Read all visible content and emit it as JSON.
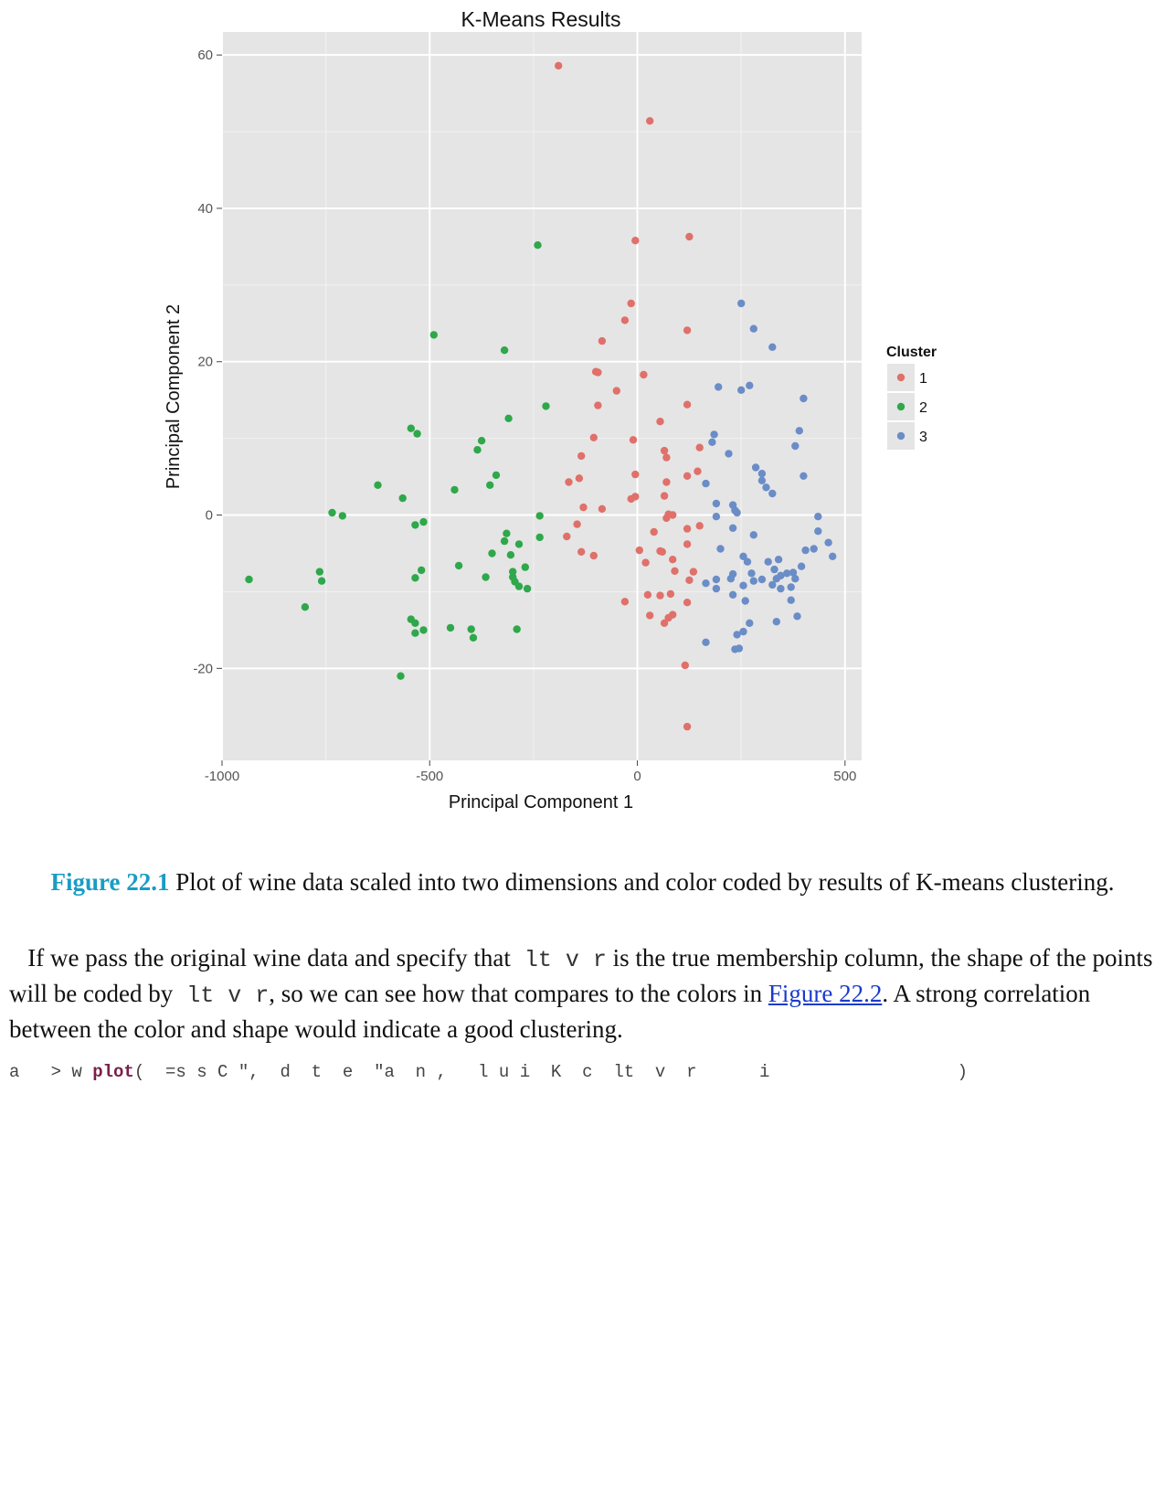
{
  "chart_data": {
    "type": "scatter",
    "title": "K-Means Results",
    "xlabel": "Principal Component 1",
    "ylabel": "Principal Component 2",
    "xlim": [
      -1000,
      540
    ],
    "ylim": [
      -32,
      63
    ],
    "xticks": [
      -1000,
      -500,
      0,
      500
    ],
    "xtick_labels": [
      "-1000",
      "-500",
      "0",
      "500"
    ],
    "yticks": [
      -20,
      0,
      20,
      40,
      60
    ],
    "ytick_labels": [
      "-20",
      "0",
      "20",
      "40",
      "60"
    ],
    "grid": true,
    "legend": {
      "title": "Cluster",
      "position": "right"
    },
    "series": [
      {
        "name": "1",
        "color": "#E0706A",
        "points": [
          [
            -190,
            58.6
          ],
          [
            30,
            51.4
          ],
          [
            -5,
            35.8
          ],
          [
            125,
            36.3
          ],
          [
            -15,
            27.6
          ],
          [
            -30,
            25.4
          ],
          [
            120,
            24.1
          ],
          [
            -85,
            22.7
          ],
          [
            -95,
            18.6
          ],
          [
            -100,
            18.7
          ],
          [
            15,
            18.3
          ],
          [
            -50,
            16.2
          ],
          [
            -95,
            14.3
          ],
          [
            120,
            14.4
          ],
          [
            55,
            12.2
          ],
          [
            -105,
            10.1
          ],
          [
            -10,
            9.8
          ],
          [
            65,
            8.4
          ],
          [
            -135,
            7.7
          ],
          [
            150,
            8.8
          ],
          [
            70,
            7.5
          ],
          [
            -140,
            4.8
          ],
          [
            -165,
            4.3
          ],
          [
            -5,
            5.3
          ],
          [
            145,
            5.7
          ],
          [
            70,
            4.3
          ],
          [
            120,
            5.1
          ],
          [
            -130,
            1.0
          ],
          [
            -15,
            2.1
          ],
          [
            -85,
            0.8
          ],
          [
            -5,
            2.4
          ],
          [
            65,
            2.5
          ],
          [
            75,
            0.1
          ],
          [
            85,
            0.0
          ],
          [
            70,
            -0.4
          ],
          [
            120,
            -1.8
          ],
          [
            150,
            -1.4
          ],
          [
            -145,
            -1.2
          ],
          [
            40,
            -2.2
          ],
          [
            -170,
            -2.8
          ],
          [
            120,
            -3.8
          ],
          [
            -135,
            -4.8
          ],
          [
            5,
            -4.6
          ],
          [
            -105,
            -5.3
          ],
          [
            55,
            -4.7
          ],
          [
            60,
            -4.8
          ],
          [
            85,
            -5.8
          ],
          [
            20,
            -6.2
          ],
          [
            90,
            -7.3
          ],
          [
            135,
            -7.4
          ],
          [
            125,
            -8.5
          ],
          [
            -30,
            -11.3
          ],
          [
            25,
            -10.4
          ],
          [
            55,
            -10.5
          ],
          [
            80,
            -10.3
          ],
          [
            120,
            -11.4
          ],
          [
            30,
            -13.1
          ],
          [
            75,
            -13.4
          ],
          [
            85,
            -13.0
          ],
          [
            65,
            -14.1
          ],
          [
            115,
            -19.6
          ],
          [
            120,
            -27.6
          ]
        ]
      },
      {
        "name": "2",
        "color": "#2EA84A",
        "points": [
          [
            -240,
            35.2
          ],
          [
            -490,
            23.5
          ],
          [
            -320,
            21.5
          ],
          [
            -220,
            14.2
          ],
          [
            -310,
            12.6
          ],
          [
            -545,
            11.3
          ],
          [
            -530,
            10.6
          ],
          [
            -375,
            9.7
          ],
          [
            -385,
            8.5
          ],
          [
            -340,
            5.2
          ],
          [
            -625,
            3.9
          ],
          [
            -440,
            3.3
          ],
          [
            -355,
            3.9
          ],
          [
            -565,
            2.2
          ],
          [
            -735,
            0.3
          ],
          [
            -710,
            -0.1
          ],
          [
            -235,
            -0.1
          ],
          [
            -515,
            -0.9
          ],
          [
            -535,
            -1.3
          ],
          [
            -315,
            -2.4
          ],
          [
            -320,
            -3.4
          ],
          [
            -285,
            -3.8
          ],
          [
            -235,
            -2.9
          ],
          [
            -350,
            -5.0
          ],
          [
            -305,
            -5.2
          ],
          [
            -520,
            -7.2
          ],
          [
            -430,
            -6.6
          ],
          [
            -270,
            -6.8
          ],
          [
            -935,
            -8.4
          ],
          [
            -765,
            -7.4
          ],
          [
            -760,
            -8.6
          ],
          [
            -535,
            -8.2
          ],
          [
            -365,
            -8.1
          ],
          [
            -300,
            -7.4
          ],
          [
            -300,
            -8.1
          ],
          [
            -295,
            -8.7
          ],
          [
            -285,
            -9.3
          ],
          [
            -265,
            -9.6
          ],
          [
            -800,
            -12.0
          ],
          [
            -545,
            -13.6
          ],
          [
            -535,
            -14.1
          ],
          [
            -450,
            -14.7
          ],
          [
            -400,
            -14.9
          ],
          [
            -395,
            -16.0
          ],
          [
            -515,
            -15.0
          ],
          [
            -535,
            -15.4
          ],
          [
            -290,
            -14.9
          ],
          [
            -570,
            -21.0
          ]
        ]
      },
      {
        "name": "3",
        "color": "#6A8DC8",
        "points": [
          [
            250,
            27.6
          ],
          [
            280,
            24.3
          ],
          [
            325,
            21.9
          ],
          [
            195,
            16.7
          ],
          [
            250,
            16.3
          ],
          [
            270,
            16.9
          ],
          [
            400,
            15.2
          ],
          [
            390,
            11.0
          ],
          [
            185,
            10.5
          ],
          [
            180,
            9.5
          ],
          [
            380,
            9.0
          ],
          [
            220,
            8.0
          ],
          [
            285,
            6.2
          ],
          [
            300,
            5.4
          ],
          [
            400,
            5.1
          ],
          [
            300,
            4.5
          ],
          [
            310,
            3.6
          ],
          [
            325,
            2.8
          ],
          [
            165,
            4.1
          ],
          [
            190,
            1.5
          ],
          [
            230,
            1.3
          ],
          [
            235,
            0.6
          ],
          [
            240,
            0.3
          ],
          [
            190,
            -0.2
          ],
          [
            435,
            -0.2
          ],
          [
            230,
            -1.7
          ],
          [
            280,
            -2.6
          ],
          [
            435,
            -2.1
          ],
          [
            460,
            -3.6
          ],
          [
            200,
            -4.4
          ],
          [
            405,
            -4.6
          ],
          [
            425,
            -4.4
          ],
          [
            470,
            -5.4
          ],
          [
            255,
            -5.4
          ],
          [
            265,
            -6.1
          ],
          [
            315,
            -6.1
          ],
          [
            340,
            -5.8
          ],
          [
            330,
            -7.1
          ],
          [
            395,
            -6.7
          ],
          [
            375,
            -7.5
          ],
          [
            360,
            -7.6
          ],
          [
            345,
            -7.9
          ],
          [
            335,
            -8.3
          ],
          [
            230,
            -7.7
          ],
          [
            275,
            -7.6
          ],
          [
            225,
            -8.3
          ],
          [
            280,
            -8.6
          ],
          [
            300,
            -8.4
          ],
          [
            380,
            -8.3
          ],
          [
            190,
            -8.4
          ],
          [
            165,
            -8.9
          ],
          [
            190,
            -9.6
          ],
          [
            255,
            -9.2
          ],
          [
            325,
            -9.1
          ],
          [
            345,
            -9.6
          ],
          [
            370,
            -9.4
          ],
          [
            230,
            -10.4
          ],
          [
            260,
            -11.2
          ],
          [
            370,
            -11.1
          ],
          [
            385,
            -13.2
          ],
          [
            270,
            -14.1
          ],
          [
            335,
            -13.9
          ],
          [
            255,
            -15.2
          ],
          [
            240,
            -15.6
          ],
          [
            165,
            -16.6
          ],
          [
            235,
            -17.5
          ],
          [
            245,
            -17.4
          ]
        ]
      }
    ]
  },
  "caption": {
    "figure_number": "Figure 22.1",
    "text": " Plot of wine data scaled into two dimensions and color coded by results of K-means clustering."
  },
  "paragraph": {
    "part1": "If we pass the original wine data and specify that",
    "code1": "  lt  v  r",
    "part2": " is the true membership column, the shape of the points will be coded by",
    "code2": "  lt  v  r",
    "part3": ", so we can see how that compares to the colors in ",
    "link": "Figure 22.2",
    "part4": ". A strong correlation between the color and shape would indicate a good clustering."
  },
  "code_line": {
    "prefix": "a   > w ",
    "fn": "plot",
    "rest": "(  =s s C \",  d  t  e  \"a  n ,   l u i  K  c  lt  v  r      i                  )"
  }
}
